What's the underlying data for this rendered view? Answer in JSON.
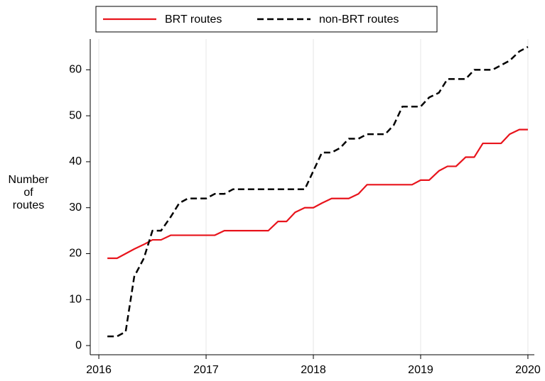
{
  "chart_data": {
    "type": "line",
    "y_label": "Number of routes",
    "x": [
      2016.08,
      2016.17,
      2016.25,
      2016.33,
      2016.42,
      2016.5,
      2016.58,
      2016.67,
      2016.75,
      2016.83,
      2016.92,
      2017.0,
      2017.08,
      2017.17,
      2017.25,
      2017.33,
      2017.42,
      2017.5,
      2017.58,
      2017.67,
      2017.75,
      2017.83,
      2017.92,
      2018.0,
      2018.08,
      2018.17,
      2018.25,
      2018.33,
      2018.42,
      2018.5,
      2018.58,
      2018.67,
      2018.75,
      2018.83,
      2018.92,
      2019.0,
      2019.08,
      2019.17,
      2019.25,
      2019.33,
      2019.42,
      2019.5,
      2019.58,
      2019.67,
      2019.75,
      2019.83,
      2019.92,
      2020.0
    ],
    "series": [
      {
        "name": "BRT routes",
        "color": "#e8141c",
        "dash": false,
        "values": [
          19,
          19,
          20,
          21,
          22,
          23,
          23,
          24,
          24,
          24,
          24,
          24,
          24,
          25,
          25,
          25,
          25,
          25,
          25,
          27,
          27,
          29,
          30,
          30,
          31,
          32,
          32,
          32,
          33,
          35,
          35,
          35,
          35,
          35,
          35,
          36,
          36,
          38,
          39,
          39,
          41,
          41,
          44,
          44,
          44,
          46,
          47,
          47
        ]
      },
      {
        "name": "non-BRT routes",
        "color": "#000000",
        "dash": true,
        "values": [
          2,
          2,
          3,
          15,
          19,
          25,
          25,
          28,
          31,
          32,
          32,
          32,
          33,
          33,
          34,
          34,
          34,
          34,
          34,
          34,
          34,
          34,
          34,
          38,
          42,
          42,
          43,
          45,
          45,
          46,
          46,
          46,
          48,
          52,
          52,
          52,
          54,
          55,
          58,
          58,
          58,
          60,
          60,
          60,
          61,
          62,
          64,
          65
        ]
      }
    ],
    "xlim": [
      2015.92,
      2020.06
    ],
    "xticks": [
      2016,
      2017,
      2018,
      2019,
      2020
    ],
    "ylim": [
      -2,
      66.7
    ],
    "yticks": [
      0,
      10,
      20,
      30,
      40,
      50,
      60
    ],
    "grid": "x",
    "legend": "top"
  }
}
